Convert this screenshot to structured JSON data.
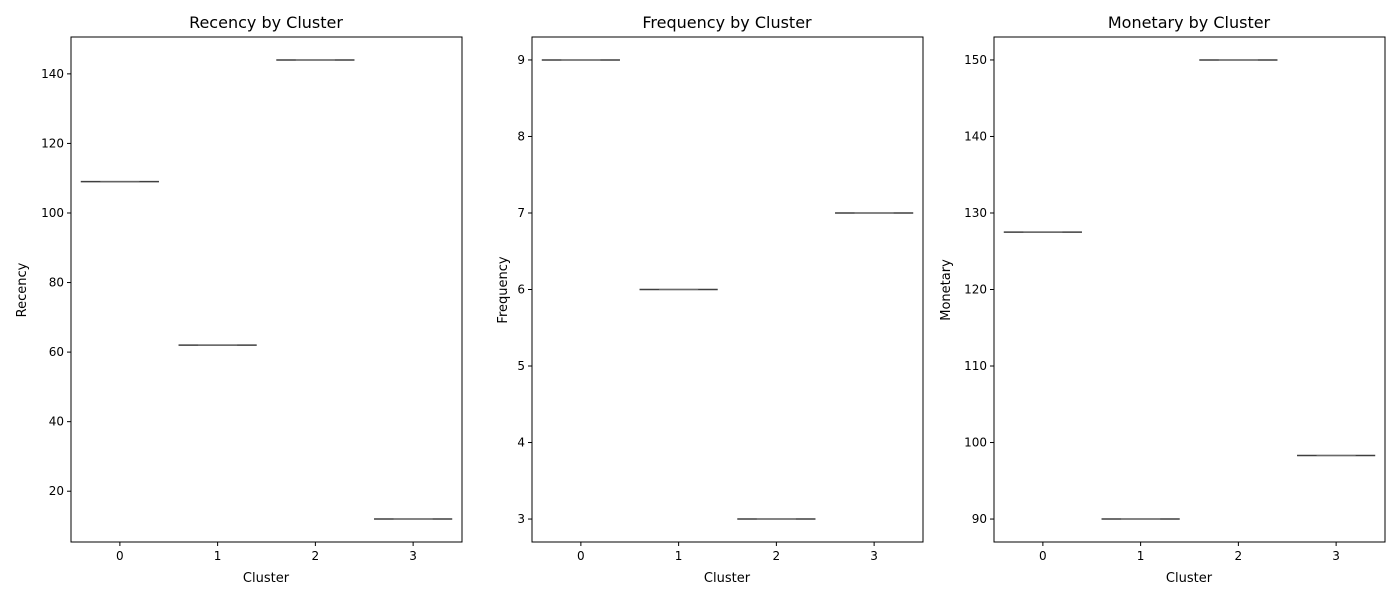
{
  "chart_data": [
    {
      "type": "box",
      "title": "Recency by Cluster",
      "xlabel": "Cluster",
      "ylabel": "Recency",
      "categories": [
        "0",
        "1",
        "2",
        "3"
      ],
      "values": [
        109,
        62,
        144,
        12
      ],
      "ylim": [
        5.4,
        150.6
      ],
      "yticks": [
        20,
        40,
        60,
        80,
        100,
        120,
        140
      ],
      "grid": false
    },
    {
      "type": "box",
      "title": "Frequency by Cluster",
      "xlabel": "Cluster",
      "ylabel": "Frequency",
      "categories": [
        "0",
        "1",
        "2",
        "3"
      ],
      "values": [
        9,
        6,
        3,
        7
      ],
      "ylim": [
        2.7,
        9.3
      ],
      "yticks": [
        3,
        4,
        5,
        6,
        7,
        8,
        9
      ],
      "grid": false
    },
    {
      "type": "box",
      "title": "Monetary by Cluster",
      "xlabel": "Cluster",
      "ylabel": "Monetary",
      "categories": [
        "0",
        "1",
        "2",
        "3"
      ],
      "values": [
        127.5,
        90,
        150,
        98.3
      ],
      "ylim": [
        87,
        153
      ],
      "yticks": [
        90,
        100,
        110,
        120,
        130,
        140,
        150
      ],
      "grid": false
    }
  ]
}
